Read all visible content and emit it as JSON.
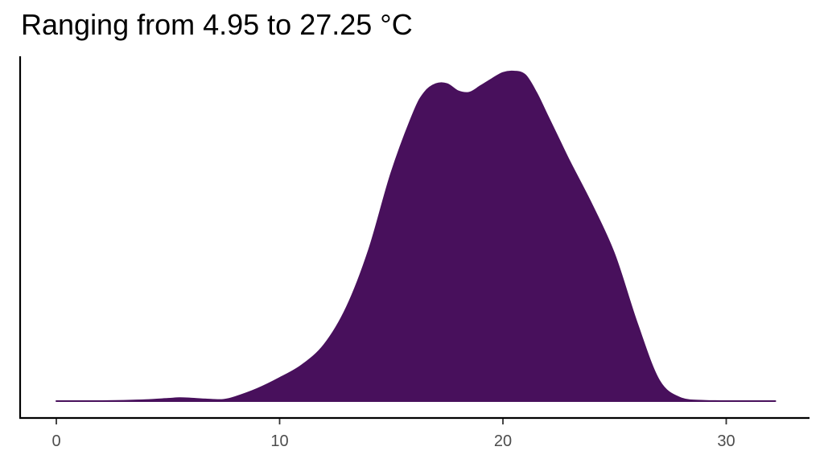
{
  "title": "Ranging from 4.95 to 27.25 °C",
  "chart_data": {
    "type": "area",
    "subtype": "density",
    "title": "Ranging from 4.95 to 27.25 °C",
    "xlabel": "",
    "ylabel": "",
    "xlim": [
      0,
      32.3
    ],
    "xticks": [
      0,
      10,
      20,
      30
    ],
    "xtick_labels": [
      "0",
      "10",
      "20",
      "30"
    ],
    "y_axis_ticks_shown": false,
    "grid": false,
    "fill_color": "#48105c",
    "x": [
      0,
      1,
      2,
      3,
      4,
      5,
      5.5,
      6,
      7,
      7.5,
      8,
      9,
      10,
      11,
      12,
      13,
      14,
      15,
      16,
      16.5,
      17,
      17.5,
      18,
      18.5,
      19,
      19.5,
      20,
      20.5,
      21,
      21.5,
      22,
      22.5,
      23,
      24,
      25,
      26,
      27,
      28,
      29,
      30,
      31,
      32.2
    ],
    "density": [
      0,
      0,
      0,
      0.001,
      0.003,
      0.007,
      0.009,
      0.008,
      0.004,
      0.004,
      0.012,
      0.037,
      0.07,
      0.109,
      0.171,
      0.284,
      0.459,
      0.692,
      0.875,
      0.937,
      0.962,
      0.962,
      0.94,
      0.936,
      0.956,
      0.977,
      0.996,
      1.0,
      0.989,
      0.935,
      0.865,
      0.795,
      0.725,
      0.593,
      0.444,
      0.237,
      0.062,
      0.008,
      0.001,
      0,
      0,
      0
    ]
  }
}
